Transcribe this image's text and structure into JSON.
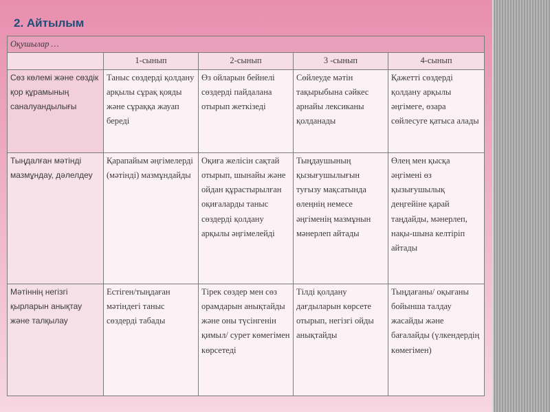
{
  "slide": {
    "title": "2. Айтылым"
  },
  "table": {
    "header": "Оқушылар …",
    "grades": [
      "1-сынып",
      "2-сынып",
      "3 -сынып",
      "4-сынып"
    ],
    "rows": [
      {
        "category": "Сөз көлемі және сөздік қор құрамының саналуандылығы",
        "cells": [
          "Таныс сөздерді қолдану арқылы сұрақ қояды және сұраққа жауап береді",
          "Өз ойларын бейнелі сөздерді пайдалана отырып жеткізеді",
          "Сөйлеуде мәтін тақырыбына сәйкес арнайы лексиканы қолданады",
          "Қажетті сөздерді қолдану арқылы әңгімеге, өзара сөйлесуге қатыса алады"
        ]
      },
      {
        "category": "Тыңдалған мәтінді мазмұндау, дәлелдеу",
        "cells": [
          "Қарапайым әңгімелерді (мәтінді) мазмұндайды",
          "Оқиға желісін сақтай отырып, шынайы және ойдан құрастырылған оқиғаларды таныс сөздерді қолдану арқылы әңгімелейді",
          "Тыңдаушының қызығушылығын туғызу мақсатында өлеңнің немесе әңгіменің мазмұнын мәнерлеп айтады",
          "Өлең мен қысқа әңгімені өз қызығушылық деңгейіне қарай таңдайды, мәнерлеп, нақы-шына келтіріп айтады"
        ]
      },
      {
        "category": "Мәтіннің негізгі қырларын анықтау және талқылау",
        "cells": [
          "Естіген/тыңдаған мәтіндегі таныс сөздерді табады",
          "Тірек сөздер мен сөз орамдарын анықтайды және оны түсінгенін қимыл/ сурет көмегімен көрсетеді",
          "Тілді қолдану дағдыларын көрсете отырып, негізгі ойды анықтайды",
          "Тыңдағаны/ оқығаны бойынша талдау жасайды және бағалайды (үлкендердің көмегімен)"
        ]
      }
    ]
  }
}
